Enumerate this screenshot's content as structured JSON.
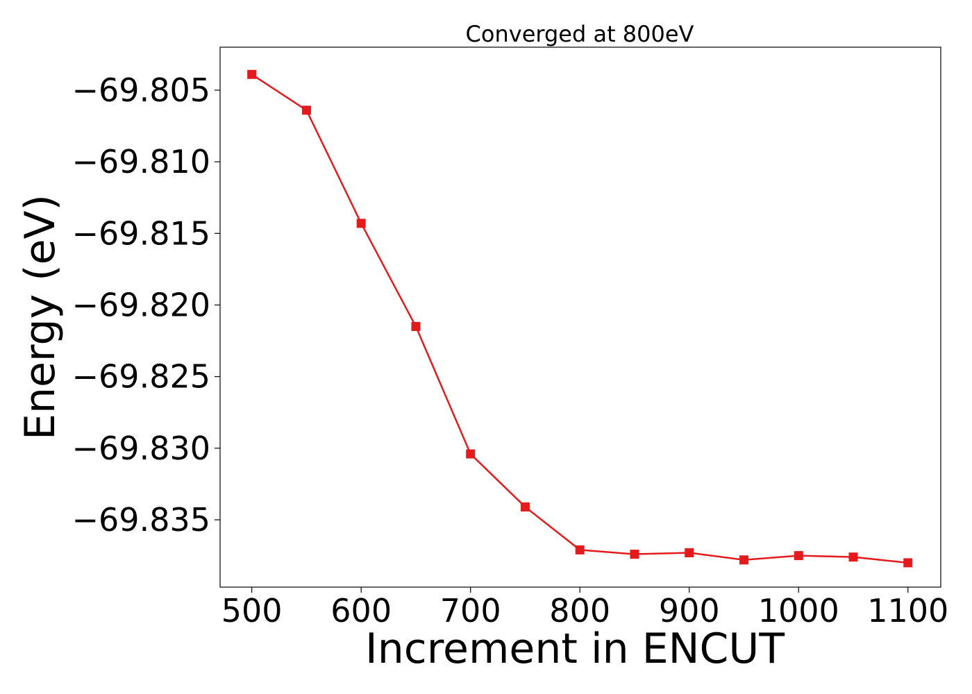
{
  "chart_data": {
    "type": "line",
    "title": "Converged at 800eV",
    "xlabel": "Increment in ENCUT",
    "ylabel": "Energy (eV)",
    "x": [
      500,
      550,
      600,
      650,
      700,
      750,
      800,
      850,
      900,
      950,
      1000,
      1050,
      1100
    ],
    "series": [
      {
        "values": [
          -69.8039,
          -69.8064,
          -69.8143,
          -69.8215,
          -69.8304,
          -69.8341,
          -69.8371,
          -69.8374,
          -69.8373,
          -69.8378,
          -69.8375,
          -69.8376,
          -69.838
        ],
        "color": "#e41a1c",
        "marker": "square"
      }
    ],
    "xticks": [
      500,
      600,
      700,
      800,
      900,
      1000,
      1100
    ],
    "xtick_labels": [
      "500",
      "600",
      "700",
      "800",
      "900",
      "1000",
      "1100"
    ],
    "yticks": [
      -69.805,
      -69.81,
      -69.815,
      -69.82,
      -69.825,
      -69.83,
      -69.835
    ],
    "ytick_labels": [
      "−69.805",
      "−69.810",
      "−69.815",
      "−69.820",
      "−69.825",
      "−69.830",
      "−69.835"
    ],
    "xlim": [
      471,
      1130
    ],
    "ylim": [
      -69.8397,
      -69.802
    ],
    "grid": false,
    "legend": false
  }
}
